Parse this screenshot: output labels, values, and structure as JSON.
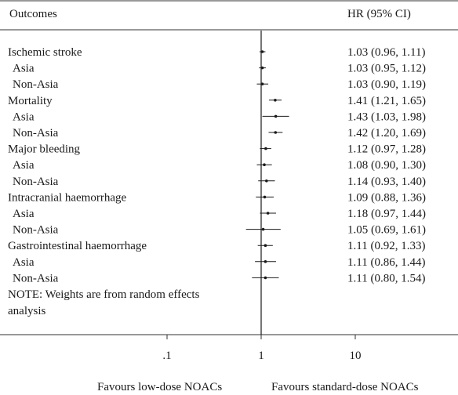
{
  "chart_data": {
    "type": "forest",
    "header": {
      "outcomes": "Outcomes",
      "hr": "HR (95% CI)"
    },
    "rows": [
      {
        "label": "Ischemic stroke",
        "indent": false,
        "hr": 1.03,
        "lo": 0.96,
        "hi": 1.11,
        "text": "1.03 (0.96, 1.11)"
      },
      {
        "label": "Asia",
        "indent": true,
        "hr": 1.03,
        "lo": 0.95,
        "hi": 1.12,
        "text": "1.03 (0.95, 1.12)"
      },
      {
        "label": "Non-Asia",
        "indent": true,
        "hr": 1.03,
        "lo": 0.9,
        "hi": 1.19,
        "text": "1.03 (0.90, 1.19)"
      },
      {
        "label": "Mortality",
        "indent": false,
        "hr": 1.41,
        "lo": 1.21,
        "hi": 1.65,
        "text": "1.41 (1.21, 1.65)"
      },
      {
        "label": "Asia",
        "indent": true,
        "hr": 1.43,
        "lo": 1.03,
        "hi": 1.98,
        "text": "1.43 (1.03, 1.98)"
      },
      {
        "label": "Non-Asia",
        "indent": true,
        "hr": 1.42,
        "lo": 1.2,
        "hi": 1.69,
        "text": "1.42 (1.20, 1.69)"
      },
      {
        "label": "Major bleeding",
        "indent": false,
        "hr": 1.12,
        "lo": 0.97,
        "hi": 1.28,
        "text": "1.12 (0.97, 1.28)"
      },
      {
        "label": "Asia",
        "indent": true,
        "hr": 1.08,
        "lo": 0.9,
        "hi": 1.3,
        "text": "1.08 (0.90, 1.30)"
      },
      {
        "label": "Non-Asia",
        "indent": true,
        "hr": 1.14,
        "lo": 0.93,
        "hi": 1.4,
        "text": "1.14 (0.93, 1.40)"
      },
      {
        "label": "Intracranial haemorrhage",
        "indent": false,
        "hr": 1.09,
        "lo": 0.88,
        "hi": 1.36,
        "text": "1.09 (0.88, 1.36)"
      },
      {
        "label": "Asia",
        "indent": true,
        "hr": 1.18,
        "lo": 0.97,
        "hi": 1.44,
        "text": "1.18 (0.97, 1.44)"
      },
      {
        "label": "Non-Asia",
        "indent": true,
        "hr": 1.05,
        "lo": 0.69,
        "hi": 1.61,
        "text": "1.05 (0.69, 1.61)"
      },
      {
        "label": "Gastrointestinal haemorrhage",
        "indent": false,
        "hr": 1.11,
        "lo": 0.92,
        "hi": 1.33,
        "text": "1.11 (0.92, 1.33)"
      },
      {
        "label": "Asia",
        "indent": true,
        "hr": 1.11,
        "lo": 0.86,
        "hi": 1.44,
        "text": "1.11 (0.86, 1.44)"
      },
      {
        "label": "Non-Asia",
        "indent": true,
        "hr": 1.11,
        "lo": 0.8,
        "hi": 1.54,
        "text": "1.11 (0.80, 1.54)"
      }
    ],
    "note_lines": [
      "NOTE: Weights are from random effects",
      "analysis"
    ],
    "x_scale": "log",
    "x_range": [
      0.03,
      60
    ],
    "x_ticks": [
      {
        "value": 0.1,
        "label": ".1"
      },
      {
        "value": 1,
        "label": "1"
      },
      {
        "value": 10,
        "label": "10"
      }
    ],
    "reference_line": 1,
    "favours_left": "Favours low-dose NOACs",
    "favours_right": "Favours standard-dose NOACs"
  }
}
